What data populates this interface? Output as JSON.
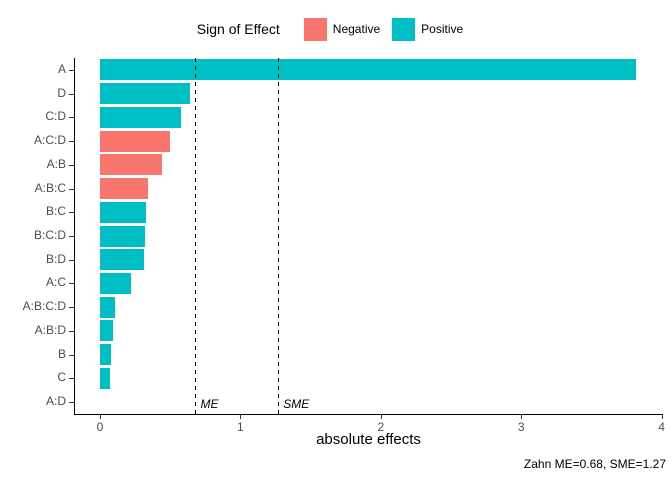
{
  "legend": {
    "title": "Sign of Effect",
    "items": [
      {
        "label": "Negative",
        "color": "#F8766D"
      },
      {
        "label": "Positive",
        "color": "#00BFC4"
      }
    ]
  },
  "chart_data": {
    "type": "bar",
    "orientation": "horizontal",
    "title": "",
    "xlabel": "absolute effects",
    "ylabel": "",
    "xlim": [
      0,
      4
    ],
    "x_ticks": [
      0,
      1,
      2,
      3,
      4
    ],
    "grid": false,
    "legend_position": "top",
    "categories": [
      "A",
      "D",
      "C:D",
      "A:C:D",
      "A:B",
      "A:B:C",
      "B:C",
      "B:C:D",
      "B:D",
      "A:C",
      "A:B:C:D",
      "A:B:D",
      "B",
      "C",
      "A:D"
    ],
    "series": [
      {
        "name": "absolute effect",
        "values": [
          3.82,
          0.64,
          0.58,
          0.5,
          0.44,
          0.34,
          0.33,
          0.32,
          0.31,
          0.22,
          0.11,
          0.09,
          0.08,
          0.07,
          0.0
        ],
        "signs": [
          "Positive",
          "Positive",
          "Positive",
          "Negative",
          "Negative",
          "Negative",
          "Positive",
          "Positive",
          "Positive",
          "Positive",
          "Positive",
          "Positive",
          "Positive",
          "Positive",
          "Positive"
        ]
      }
    ],
    "colors": {
      "Negative": "#F8766D",
      "Positive": "#00BFC4"
    },
    "reference_lines": [
      {
        "label": "ME",
        "value": 0.68
      },
      {
        "label": "SME",
        "value": 1.27
      }
    ]
  },
  "caption": "Zahn ME=0.68, SME=1.27"
}
